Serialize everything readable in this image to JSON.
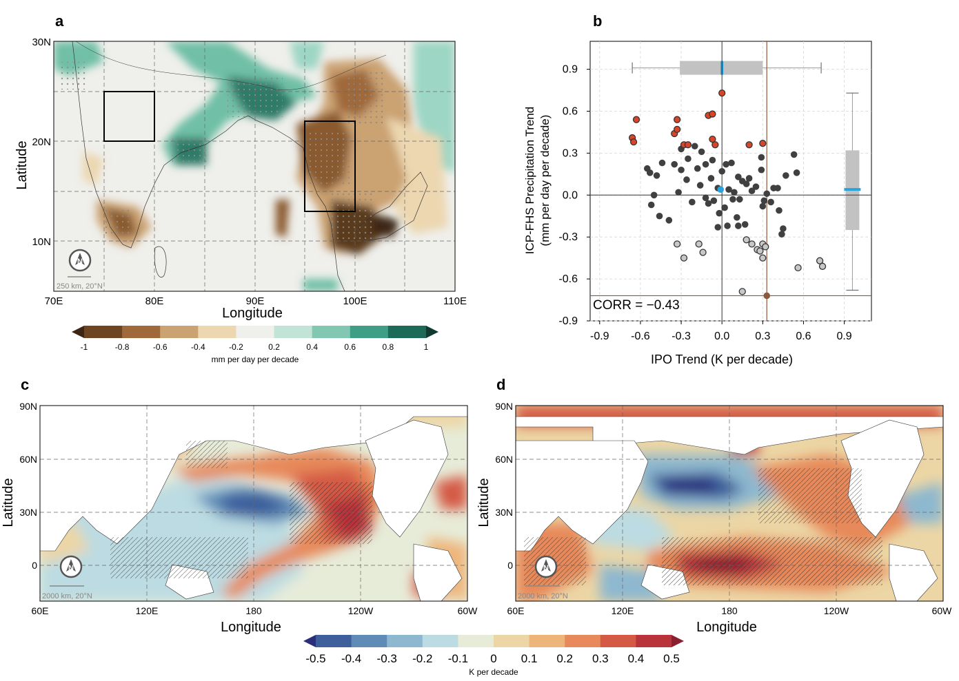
{
  "panels": {
    "a": {
      "label": "a",
      "xlabel": "Longitude",
      "ylabel": "Latitude",
      "x_ticks": [
        "70E",
        "80E",
        "90E",
        "100E",
        "110E"
      ],
      "y_ticks": [
        "30N",
        "20N",
        "10N"
      ],
      "scale_label": "250 km, 20°N",
      "north_arrow": "N",
      "colorbar": {
        "labels": [
          "-1",
          "-0.8",
          "-0.6",
          "-0.4",
          "-0.2",
          "0.2",
          "0.4",
          "0.6",
          "0.8",
          "1"
        ],
        "unit": "mm per day per decade",
        "colors": [
          "#3d2614",
          "#6e4521",
          "#a0693a",
          "#cba272",
          "#ecd7b1",
          "#efefeb",
          "#c2e4d6",
          "#81c7b2",
          "#3f9e86",
          "#1c6a57",
          "#103a30"
        ]
      }
    },
    "c": {
      "label": "c",
      "xlabel": "Longitude",
      "ylabel": "Latitude",
      "x_ticks": [
        "60E",
        "120E",
        "180",
        "120W",
        "60W"
      ],
      "y_ticks": [
        "90N",
        "60N",
        "30N",
        "0"
      ],
      "scale_label": "2000 km, 20°N",
      "north_arrow": "N"
    },
    "d": {
      "label": "d",
      "xlabel": "Longitude",
      "ylabel": "Latitude",
      "x_ticks": [
        "60E",
        "120E",
        "180",
        "120W",
        "60W"
      ],
      "y_ticks": [
        "90N",
        "60N",
        "30N",
        "0"
      ],
      "scale_label": "2000 km, 20°N",
      "north_arrow": "N"
    },
    "sst_colorbar": {
      "labels": [
        "-0.5",
        "-0.4",
        "-0.3",
        "-0.2",
        "-0.1",
        "0",
        "0.1",
        "0.2",
        "0.3",
        "0.4",
        "0.5"
      ],
      "unit": "K per decade",
      "colors": [
        "#2b2f7a",
        "#3e5f9b",
        "#5f8cb7",
        "#8db8cf",
        "#bcdbe2",
        "#e7ecd9",
        "#ecd6a5",
        "#eeb57a",
        "#e7895a",
        "#d45a45",
        "#b8333a",
        "#8a1f2f"
      ]
    }
  },
  "chart_data": {
    "type": "scatter",
    "panel_label": "b",
    "xlabel": "IPO Trend (K per decade)",
    "ylabel_line1": "ICP-FHS Precipitation Trend",
    "ylabel_line2": "(mm per day per decade)",
    "annotation": "CORR = −0.43",
    "x_ticks": [
      "-0.9",
      "-0.6",
      "-0.3",
      "0.0",
      "0.3",
      "0.6",
      "0.9"
    ],
    "y_ticks": [
      "0.9",
      "0.6",
      "0.3",
      "0.0",
      "-0.3",
      "-0.6",
      "-0.9"
    ],
    "xlim": [
      -0.97,
      1.1
    ],
    "ylim": [
      -0.9,
      1.1
    ],
    "grid": true,
    "colors": {
      "high": "#d7452a",
      "low": "#c8c8c8",
      "mid": "#404040",
      "mean": "#29a3dd",
      "obs": "#8b5a3c",
      "box": "#c3c2c2"
    },
    "points_high": [
      [
        -0.66,
        0.41
      ],
      [
        -0.65,
        0.38
      ],
      [
        -0.63,
        0.54
      ],
      [
        -0.35,
        0.44
      ],
      [
        -0.33,
        0.47
      ],
      [
        -0.33,
        0.54
      ],
      [
        -0.28,
        0.36
      ],
      [
        -0.25,
        0.36
      ],
      [
        -0.1,
        0.57
      ],
      [
        -0.07,
        0.58
      ],
      [
        -0.07,
        0.4
      ],
      [
        -0.05,
        0.36
      ],
      [
        0.0,
        0.73
      ],
      [
        0.2,
        0.36
      ],
      [
        0.3,
        0.37
      ]
    ],
    "points_low": [
      [
        -0.33,
        -0.35
      ],
      [
        -0.28,
        -0.45
      ],
      [
        -0.17,
        -0.35
      ],
      [
        -0.14,
        -0.41
      ],
      [
        0.18,
        -0.32
      ],
      [
        0.15,
        -0.69
      ],
      [
        0.22,
        -0.35
      ],
      [
        0.26,
        -0.39
      ],
      [
        0.28,
        -0.4
      ],
      [
        0.3,
        -0.35
      ],
      [
        0.32,
        -0.37
      ],
      [
        0.3,
        -0.45
      ],
      [
        0.56,
        -0.52
      ],
      [
        0.72,
        -0.47
      ],
      [
        0.74,
        -0.51
      ]
    ],
    "points_mid": [
      [
        -0.55,
        0.19
      ],
      [
        -0.53,
        0.16
      ],
      [
        -0.48,
        0.14
      ],
      [
        -0.44,
        0.23
      ],
      [
        -0.3,
        0.33
      ],
      [
        -0.2,
        0.35
      ],
      [
        -0.15,
        0.31
      ],
      [
        -0.52,
        -0.07
      ],
      [
        -0.46,
        -0.15
      ],
      [
        -0.39,
        -0.18
      ],
      [
        -0.32,
        0.02
      ],
      [
        -0.3,
        0.18
      ],
      [
        -0.35,
        0.22
      ],
      [
        -0.26,
        0.11
      ],
      [
        -0.22,
        -0.05
      ],
      [
        -0.25,
        0.26
      ],
      [
        -0.18,
        0.19
      ],
      [
        -0.12,
        0.22
      ],
      [
        -0.16,
        0.07
      ],
      [
        -0.12,
        -0.02
      ],
      [
        -0.08,
        0.12
      ],
      [
        -0.06,
        -0.04
      ],
      [
        -0.03,
        0.05
      ],
      [
        -0.02,
        -0.13
      ],
      [
        0.0,
        0.17
      ],
      [
        0.03,
        0.22
      ],
      [
        0.07,
        0.23
      ],
      [
        0.05,
        0.04
      ],
      [
        0.02,
        -0.09
      ],
      [
        0.04,
        -0.22
      ],
      [
        0.09,
        0.02
      ],
      [
        0.12,
        0.13
      ],
      [
        0.13,
        -0.03
      ],
      [
        0.11,
        -0.16
      ],
      [
        0.15,
        0.1
      ],
      [
        0.18,
        0.08
      ],
      [
        0.17,
        -0.21
      ],
      [
        0.2,
        0.12
      ],
      [
        0.22,
        0.03
      ],
      [
        0.25,
        0.06
      ],
      [
        0.29,
        0.27
      ],
      [
        0.29,
        0.18
      ],
      [
        0.31,
        -0.04
      ],
      [
        0.33,
        0.01
      ],
      [
        0.36,
        -0.05
      ],
      [
        0.38,
        0.05
      ],
      [
        0.41,
        0.05
      ],
      [
        0.42,
        -0.11
      ],
      [
        0.45,
        -0.24
      ],
      [
        0.47,
        0.14
      ],
      [
        0.53,
        0.29
      ],
      [
        0.55,
        0.16
      ],
      [
        -0.1,
        -0.06
      ],
      [
        -0.5,
        0.0
      ],
      [
        -0.07,
        0.25
      ],
      [
        0.12,
        -0.22
      ],
      [
        0.3,
        -0.08
      ],
      [
        0.44,
        -0.28
      ],
      [
        -0.03,
        -0.23
      ],
      [
        0.08,
        -0.03
      ]
    ],
    "mean_point": [
      -0.01,
      0.04
    ],
    "obs_x": 0.33,
    "obs_y": -0.72,
    "obs_point": [
      0.33,
      -0.72
    ],
    "box_x": {
      "whisker_low": -0.66,
      "q1": -0.31,
      "median": 0.0,
      "q3": 0.3,
      "whisker_high": 0.73,
      "y": 0.91
    },
    "box_y": {
      "whisker_low": -0.68,
      "q1": -0.25,
      "median": 0.04,
      "q3": 0.32,
      "whisker_high": 0.73,
      "x": 0.96
    }
  }
}
